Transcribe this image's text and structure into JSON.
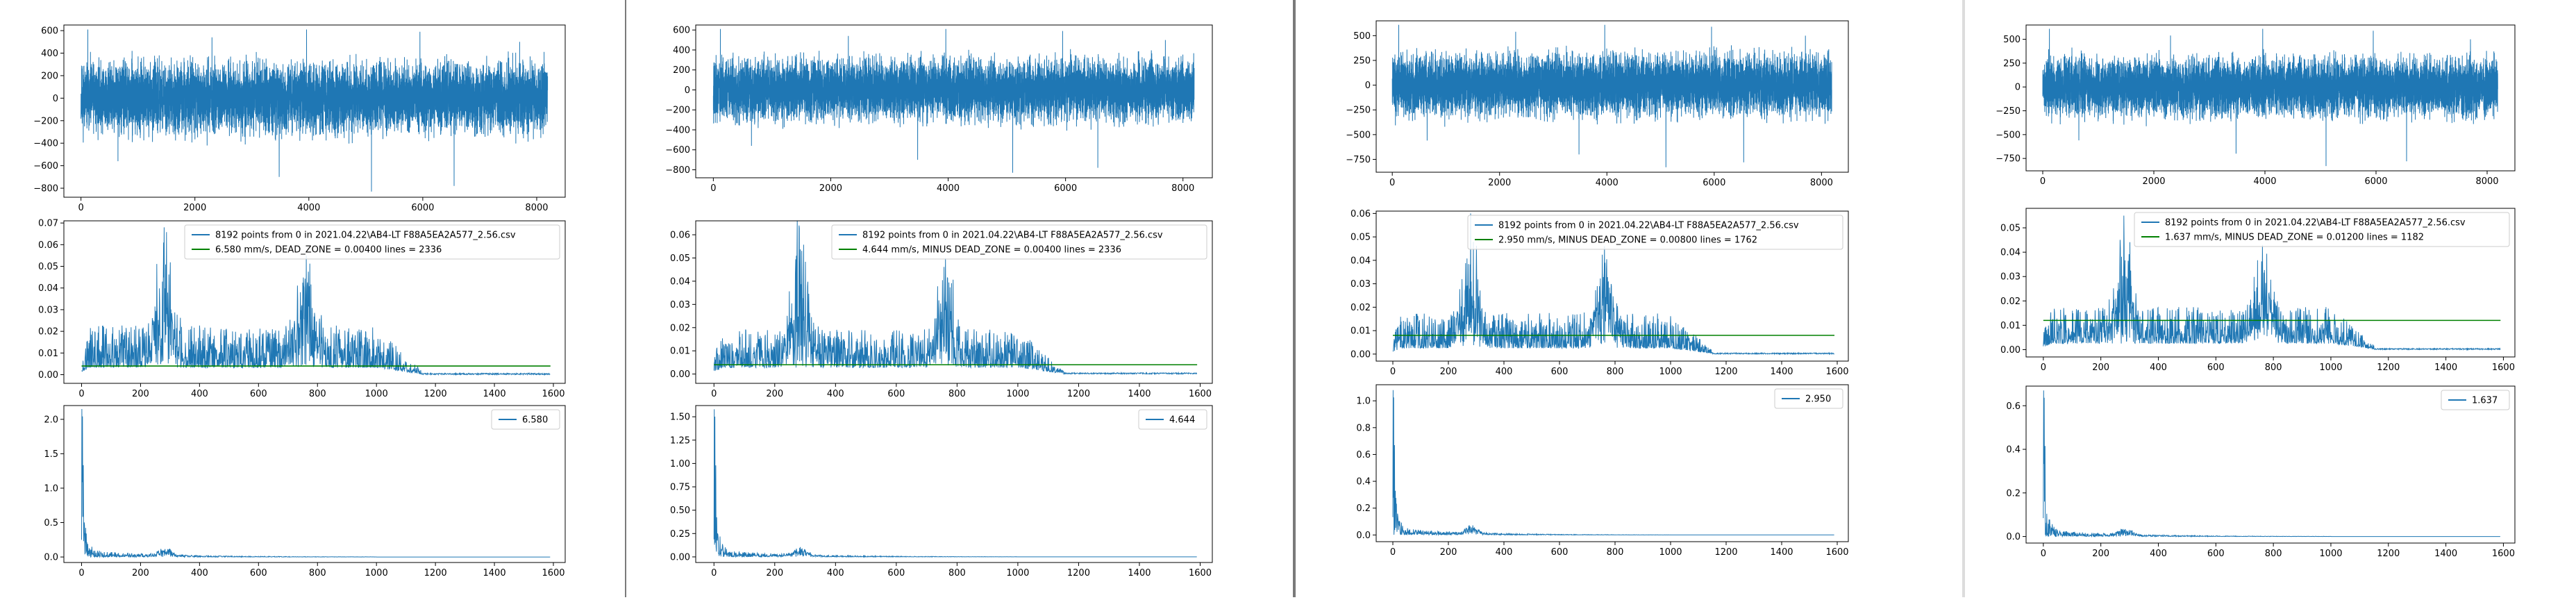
{
  "colors": {
    "signal": "#1f77b4",
    "dead_zone": "#008000",
    "axis": "#000000",
    "separator": "#7a7a7a"
  },
  "chart_data": [
    {
      "panel": 1,
      "time": {
        "type": "line",
        "n": 8192,
        "xlim": [
          -300,
          8500
        ],
        "ylim": [
          -880,
          650
        ],
        "xticks": [
          0,
          2000,
          4000,
          6000,
          8000
        ],
        "xtick_labels": [
          "0",
          "2000",
          "4000",
          "6000",
          "8000"
        ],
        "yticks": [
          -800,
          -600,
          -400,
          -200,
          0,
          200,
          400,
          600
        ],
        "ytick_labels": [
          "−800",
          "−600",
          "−400",
          "−200",
          "0",
          "200",
          "400",
          "600"
        ],
        "amplitude": 180,
        "spikes": [
          [
            120,
            610
          ],
          [
            650,
            -560
          ],
          [
            2300,
            540
          ],
          [
            3480,
            -700
          ],
          [
            3960,
            610
          ],
          [
            5100,
            -830
          ],
          [
            5950,
            590
          ],
          [
            6550,
            -780
          ],
          [
            7700,
            500
          ]
        ]
      },
      "spectrum": {
        "type": "line",
        "n": 1590,
        "xlim": [
          -60,
          1640
        ],
        "ylim": [
          -0.004,
          0.071
        ],
        "xticks": [
          0,
          200,
          400,
          600,
          800,
          1000,
          1200,
          1400,
          1600
        ],
        "xtick_labels": [
          "0",
          "200",
          "400",
          "600",
          "800",
          "1000",
          "1200",
          "1400",
          "1600"
        ],
        "yticks": [
          0,
          0.01,
          0.02,
          0.03,
          0.04,
          0.05,
          0.06,
          0.07
        ],
        "ytick_labels": [
          "0.00",
          "0.01",
          "0.02",
          "0.03",
          "0.04",
          "0.05",
          "0.06",
          "0.07"
        ],
        "peak1": 0.068,
        "peak2": 0.055,
        "base": 0.013,
        "dead_zone": 0.004,
        "legend": [
          "8192 points from 0  in  2021.04.22\\AB4-LT F88A5EA2A577_2.56.csv",
          "6.580 mm/s,  DEAD_ZONE = 0.00400     lines = 2336"
        ]
      },
      "velocity": {
        "type": "line",
        "n": 1590,
        "xlim": [
          -60,
          1640
        ],
        "ylim": [
          -0.08,
          2.2
        ],
        "xticks": [
          0,
          200,
          400,
          600,
          800,
          1000,
          1200,
          1400,
          1600
        ],
        "xtick_labels": [
          "0",
          "200",
          "400",
          "600",
          "800",
          "1000",
          "1200",
          "1400",
          "1600"
        ],
        "yticks": [
          0,
          0.5,
          1.0,
          1.5,
          2.0
        ],
        "ytick_labels": [
          "0.0",
          "0.5",
          "1.0",
          "1.5",
          "2.0"
        ],
        "peak": 2.15,
        "legend": "6.580"
      }
    },
    {
      "panel": 2,
      "time": {
        "type": "line",
        "n": 8192,
        "xlim": [
          -300,
          8500
        ],
        "ylim": [
          -880,
          650
        ],
        "xticks": [
          0,
          2000,
          4000,
          6000,
          8000
        ],
        "xtick_labels": [
          "0",
          "2000",
          "4000",
          "6000",
          "8000"
        ],
        "yticks": [
          -800,
          -600,
          -400,
          -200,
          0,
          200,
          400,
          600
        ],
        "ytick_labels": [
          "−800",
          "−600",
          "−400",
          "−200",
          "0",
          "200",
          "400",
          "600"
        ],
        "amplitude": 180,
        "spikes": [
          [
            120,
            610
          ],
          [
            650,
            -560
          ],
          [
            2300,
            540
          ],
          [
            3480,
            -700
          ],
          [
            3960,
            610
          ],
          [
            5100,
            -830
          ],
          [
            5950,
            590
          ],
          [
            6550,
            -780
          ],
          [
            7700,
            500
          ]
        ]
      },
      "spectrum": {
        "type": "line",
        "n": 1590,
        "xlim": [
          -60,
          1640
        ],
        "ylim": [
          -0.004,
          0.066
        ],
        "xticks": [
          0,
          200,
          400,
          600,
          800,
          1000,
          1200,
          1400,
          1600
        ],
        "xtick_labels": [
          "0",
          "200",
          "400",
          "600",
          "800",
          "1000",
          "1200",
          "1400",
          "1600"
        ],
        "yticks": [
          0,
          0.01,
          0.02,
          0.03,
          0.04,
          0.05,
          0.06
        ],
        "ytick_labels": [
          "0.00",
          "0.01",
          "0.02",
          "0.03",
          "0.04",
          "0.05",
          "0.06"
        ],
        "peak1": 0.064,
        "peak2": 0.05,
        "base": 0.011,
        "dead_zone": 0.004,
        "legend": [
          "8192 points from 0  in  2021.04.22\\AB4-LT F88A5EA2A577_2.56.csv",
          "4.644 mm/s,  MINUS  DEAD_ZONE = 0.00400     lines = 2336"
        ]
      },
      "velocity": {
        "type": "line",
        "n": 1590,
        "xlim": [
          -60,
          1640
        ],
        "ylim": [
          -0.06,
          1.62
        ],
        "xticks": [
          0,
          200,
          400,
          600,
          800,
          1000,
          1200,
          1400,
          1600
        ],
        "xtick_labels": [
          "0",
          "200",
          "400",
          "600",
          "800",
          "1000",
          "1200",
          "1400",
          "1600"
        ],
        "yticks": [
          0,
          0.25,
          0.5,
          0.75,
          1.0,
          1.25,
          1.5
        ],
        "ytick_labels": [
          "0.00",
          "0.25",
          "0.50",
          "0.75",
          "1.00",
          "1.25",
          "1.50"
        ],
        "peak": 1.58,
        "legend": "4.644"
      }
    },
    {
      "panel": 3,
      "time": {
        "type": "line",
        "n": 8192,
        "xlim": [
          -300,
          8500
        ],
        "ylim": [
          -880,
          650
        ],
        "xticks": [
          0,
          2000,
          4000,
          6000,
          8000
        ],
        "xtick_labels": [
          "0",
          "2000",
          "4000",
          "6000",
          "8000"
        ],
        "yticks": [
          -750,
          -500,
          -250,
          0,
          250,
          500
        ],
        "ytick_labels": [
          "−750",
          "−500",
          "−250",
          "0",
          "250",
          "500"
        ],
        "amplitude": 180,
        "spikes": [
          [
            120,
            610
          ],
          [
            650,
            -560
          ],
          [
            2300,
            540
          ],
          [
            3480,
            -700
          ],
          [
            3960,
            610
          ],
          [
            5100,
            -830
          ],
          [
            5950,
            590
          ],
          [
            6550,
            -780
          ],
          [
            7700,
            500
          ]
        ]
      },
      "spectrum": {
        "type": "line",
        "n": 1590,
        "xlim": [
          -60,
          1640
        ],
        "ylim": [
          -0.003,
          0.061
        ],
        "xticks": [
          0,
          200,
          400,
          600,
          800,
          1000,
          1200,
          1400,
          1600
        ],
        "xtick_labels": [
          "0",
          "200",
          "400",
          "600",
          "800",
          "1000",
          "1200",
          "1400",
          "1600"
        ],
        "yticks": [
          0,
          0.01,
          0.02,
          0.03,
          0.04,
          0.05,
          0.06
        ],
        "ytick_labels": [
          "0.00",
          "0.01",
          "0.02",
          "0.03",
          "0.04",
          "0.05",
          "0.06"
        ],
        "peak1": 0.06,
        "peak2": 0.046,
        "base": 0.01,
        "dead_zone": 0.008,
        "legend": [
          "8192 points from 0  in  2021.04.22\\AB4-LT F88A5EA2A577_2.56.csv",
          "2.950 mm/s,  MINUS  DEAD_ZONE = 0.00800     lines = 1762"
        ]
      },
      "velocity": {
        "type": "line",
        "n": 1590,
        "xlim": [
          -60,
          1640
        ],
        "ylim": [
          -0.05,
          1.12
        ],
        "xticks": [
          0,
          200,
          400,
          600,
          800,
          1000,
          1200,
          1400,
          1600
        ],
        "xtick_labels": [
          "0",
          "200",
          "400",
          "600",
          "800",
          "1000",
          "1200",
          "1400",
          "1600"
        ],
        "yticks": [
          0,
          0.2,
          0.4,
          0.6,
          0.8,
          1.0
        ],
        "ytick_labels": [
          "0.0",
          "0.2",
          "0.4",
          "0.6",
          "0.8",
          "1.0"
        ],
        "peak": 1.08,
        "legend": "2.950"
      }
    },
    {
      "panel": 4,
      "time": {
        "type": "line",
        "n": 8192,
        "xlim": [
          -300,
          8500
        ],
        "ylim": [
          -880,
          650
        ],
        "xticks": [
          0,
          2000,
          4000,
          6000,
          8000
        ],
        "xtick_labels": [
          "0",
          "2000",
          "4000",
          "6000",
          "8000"
        ],
        "yticks": [
          -750,
          -500,
          -250,
          0,
          250,
          500
        ],
        "ytick_labels": [
          "−750",
          "−500",
          "−250",
          "0",
          "250",
          "500"
        ],
        "amplitude": 180,
        "spikes": [
          [
            120,
            610
          ],
          [
            650,
            -560
          ],
          [
            2300,
            540
          ],
          [
            3480,
            -700
          ],
          [
            3960,
            610
          ],
          [
            5100,
            -830
          ],
          [
            5950,
            590
          ],
          [
            6550,
            -780
          ],
          [
            7700,
            500
          ]
        ]
      },
      "spectrum": {
        "type": "line",
        "n": 1590,
        "xlim": [
          -60,
          1640
        ],
        "ylim": [
          -0.003,
          0.058
        ],
        "xticks": [
          0,
          200,
          400,
          600,
          800,
          1000,
          1200,
          1400,
          1600
        ],
        "xtick_labels": [
          "0",
          "200",
          "400",
          "600",
          "800",
          "1000",
          "1200",
          "1400",
          "1600"
        ],
        "yticks": [
          0,
          0.01,
          0.02,
          0.03,
          0.04,
          0.05
        ],
        "ytick_labels": [
          "0.00",
          "0.01",
          "0.02",
          "0.03",
          "0.04",
          "0.05"
        ],
        "peak1": 0.055,
        "peak2": 0.043,
        "base": 0.01,
        "dead_zone": 0.012,
        "legend": [
          "8192 points from 0  in  2021.04.22\\AB4-LT F88A5EA2A577_2.56.csv",
          "1.637 mm/s,  MINUS  DEAD_ZONE = 0.01200     lines = 1182"
        ]
      },
      "velocity": {
        "type": "line",
        "n": 1590,
        "xlim": [
          -60,
          1640
        ],
        "ylim": [
          -0.03,
          0.69
        ],
        "xticks": [
          0,
          200,
          400,
          600,
          800,
          1000,
          1200,
          1400,
          1600
        ],
        "xtick_labels": [
          "0",
          "200",
          "400",
          "600",
          "800",
          "1000",
          "1200",
          "1400",
          "1600"
        ],
        "yticks": [
          0,
          0.2,
          0.4,
          0.6
        ],
        "ytick_labels": [
          "0.0",
          "0.2",
          "0.4",
          "0.6"
        ],
        "peak": 0.67,
        "legend": "1.637"
      }
    }
  ]
}
